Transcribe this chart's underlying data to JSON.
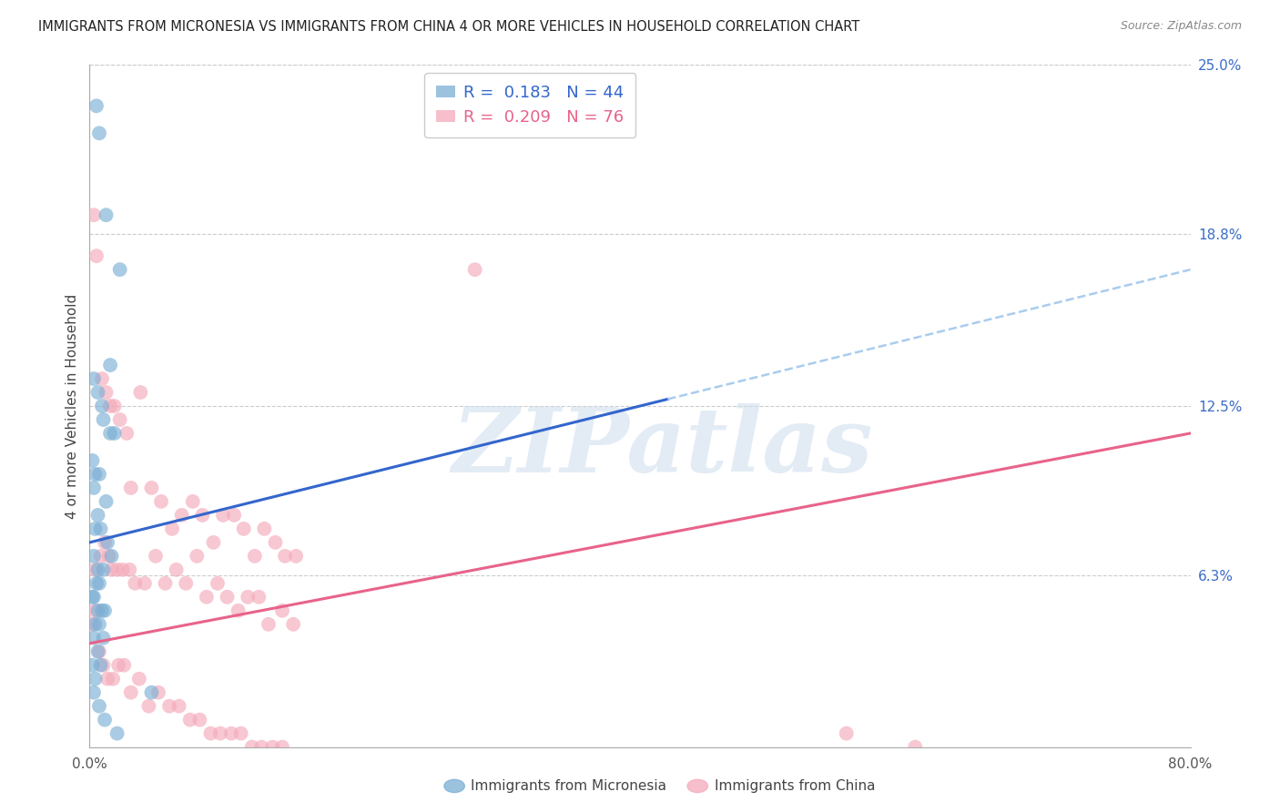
{
  "title": "IMMIGRANTS FROM MICRONESIA VS IMMIGRANTS FROM CHINA 4 OR MORE VEHICLES IN HOUSEHOLD CORRELATION CHART",
  "source": "Source: ZipAtlas.com",
  "ylabel": "4 or more Vehicles in Household",
  "xmin": 0.0,
  "xmax": 80.0,
  "ymin": 0.0,
  "ymax": 25.0,
  "right_yticks": [
    0.0,
    6.3,
    12.5,
    18.8,
    25.0
  ],
  "right_yticklabels": [
    "",
    "6.3%",
    "12.5%",
    "18.8%",
    "25.0%"
  ],
  "micronesia_R": 0.183,
  "micronesia_N": 44,
  "china_R": 0.209,
  "china_N": 76,
  "micronesia_color": "#7BAFD4",
  "china_color": "#F4AABA",
  "micronesia_line_color": "#3366CC",
  "china_line_color": "#E8638A",
  "dashed_line_color": "#AACCEE",
  "legend_label_micronesia": "Immigrants from Micronesia",
  "legend_label_china": "Immigrants from China",
  "title_fontsize": 11,
  "source_fontsize": 9,
  "watermark": "ZIPatlas",
  "micronesia_x": [
    0.5,
    0.7,
    1.2,
    2.2,
    1.5,
    0.3,
    0.6,
    0.9,
    1.0,
    1.8,
    0.2,
    0.4,
    0.7,
    0.3,
    1.2,
    0.6,
    0.4,
    0.8,
    1.3,
    1.6,
    0.3,
    0.6,
    1.0,
    0.5,
    0.7,
    0.2,
    0.3,
    0.9,
    0.6,
    1.1,
    0.4,
    0.7,
    1.0,
    1.5,
    0.3,
    0.6,
    0.8,
    0.2,
    0.4,
    4.5,
    0.3,
    0.7,
    1.1,
    2.0
  ],
  "micronesia_y": [
    23.5,
    22.5,
    19.5,
    17.5,
    14.0,
    13.5,
    13.0,
    12.5,
    12.0,
    11.5,
    10.5,
    10.0,
    10.0,
    9.5,
    9.0,
    8.5,
    8.0,
    8.0,
    7.5,
    7.0,
    7.0,
    6.5,
    6.5,
    6.0,
    6.0,
    5.5,
    5.5,
    5.0,
    5.0,
    5.0,
    4.5,
    4.5,
    4.0,
    11.5,
    4.0,
    3.5,
    3.0,
    3.0,
    2.5,
    2.0,
    2.0,
    1.5,
    1.0,
    0.5
  ],
  "china_x": [
    0.3,
    0.5,
    0.9,
    1.2,
    1.5,
    1.8,
    2.2,
    2.7,
    3.0,
    3.7,
    4.5,
    5.2,
    6.0,
    6.7,
    7.5,
    8.2,
    9.0,
    9.7,
    10.5,
    11.2,
    12.0,
    12.7,
    13.5,
    14.2,
    15.0,
    0.4,
    0.8,
    1.1,
    1.4,
    1.6,
    2.0,
    2.4,
    2.9,
    3.3,
    4.0,
    4.8,
    5.5,
    6.3,
    7.0,
    7.8,
    8.5,
    9.3,
    10.0,
    10.8,
    11.5,
    12.3,
    13.0,
    14.0,
    14.8,
    28.0,
    0.2,
    0.4,
    0.7,
    1.0,
    1.3,
    1.7,
    2.1,
    2.5,
    3.0,
    3.6,
    4.3,
    5.0,
    5.8,
    6.5,
    7.3,
    8.0,
    8.8,
    9.5,
    10.3,
    11.0,
    11.8,
    12.5,
    13.3,
    14.0,
    55.0,
    60.0
  ],
  "china_y": [
    19.5,
    18.0,
    13.5,
    13.0,
    12.5,
    12.5,
    12.0,
    11.5,
    9.5,
    13.0,
    9.5,
    9.0,
    8.0,
    8.5,
    9.0,
    8.5,
    7.5,
    8.5,
    8.5,
    8.0,
    7.0,
    8.0,
    7.5,
    7.0,
    7.0,
    6.5,
    7.0,
    7.5,
    7.0,
    6.5,
    6.5,
    6.5,
    6.5,
    6.0,
    6.0,
    7.0,
    6.0,
    6.5,
    6.0,
    7.0,
    5.5,
    6.0,
    5.5,
    5.0,
    5.5,
    5.5,
    4.5,
    5.0,
    4.5,
    17.5,
    4.5,
    5.0,
    3.5,
    3.0,
    2.5,
    2.5,
    3.0,
    3.0,
    2.0,
    2.5,
    1.5,
    2.0,
    1.5,
    1.5,
    1.0,
    1.0,
    0.5,
    0.5,
    0.5,
    0.5,
    0.0,
    0.0,
    0.0,
    0.0,
    0.5,
    0.0
  ],
  "mic_line_x0": 0.0,
  "mic_line_x1": 80.0,
  "mic_line_y0": 7.5,
  "mic_line_y1": 17.5,
  "mic_solid_x1": 42.0,
  "china_line_x0": 0.0,
  "china_line_x1": 80.0,
  "china_line_y0": 3.8,
  "china_line_y1": 11.5
}
